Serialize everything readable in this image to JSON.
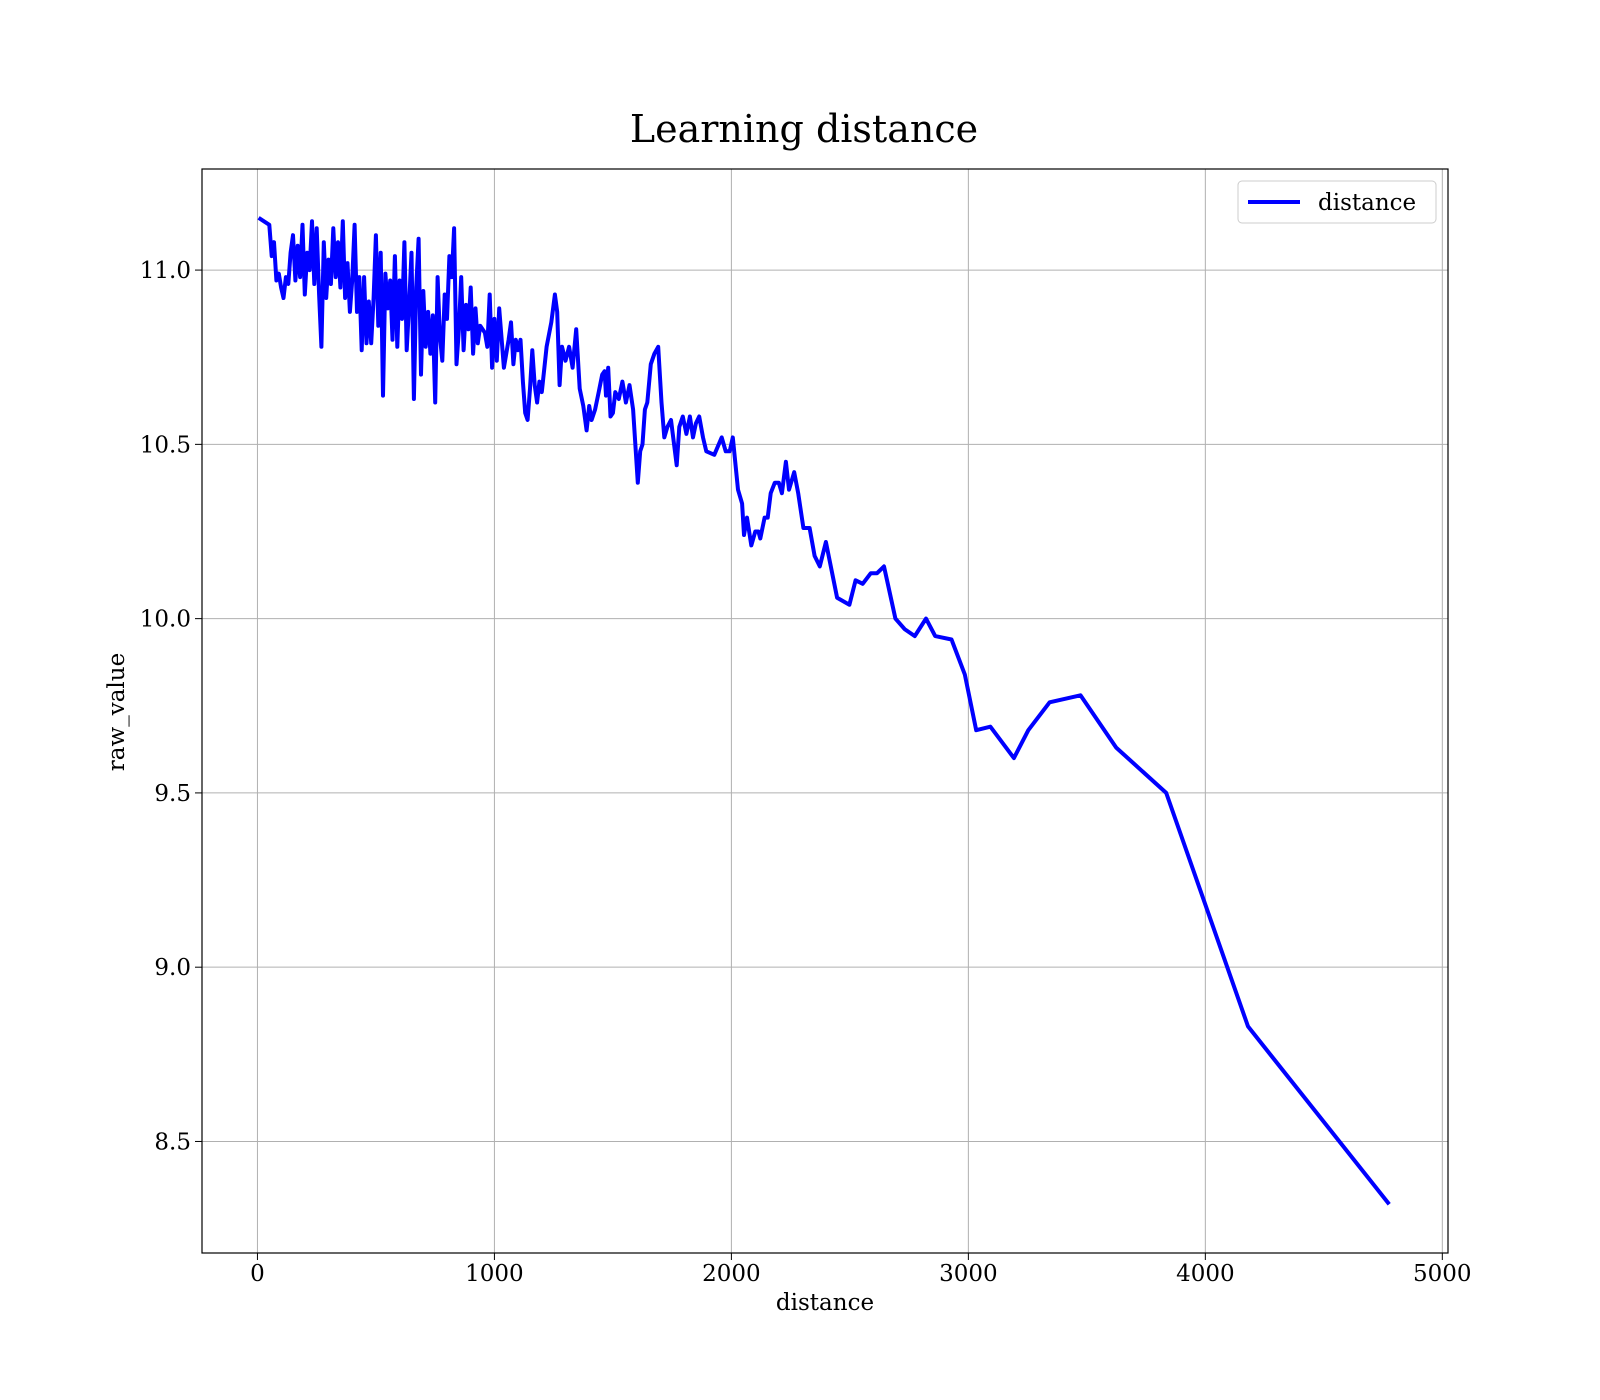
{
  "chart_data": {
    "type": "line",
    "title": "Learning distance",
    "x_label": "distance",
    "y_label": "raw_value",
    "x": [
      5,
      50,
      60,
      70,
      80,
      90,
      100,
      110,
      120,
      130,
      140,
      150,
      160,
      170,
      180,
      190,
      200,
      210,
      220,
      230,
      240,
      250,
      260,
      270,
      280,
      290,
      300,
      310,
      320,
      330,
      340,
      350,
      360,
      370,
      380,
      390,
      400,
      410,
      420,
      430,
      440,
      450,
      460,
      470,
      480,
      490,
      500,
      510,
      520,
      530,
      540,
      550,
      560,
      570,
      580,
      590,
      600,
      610,
      620,
      630,
      640,
      650,
      660,
      670,
      680,
      690,
      700,
      710,
      720,
      730,
      740,
      750,
      760,
      770,
      780,
      790,
      800,
      810,
      820,
      830,
      840,
      850,
      860,
      870,
      880,
      890,
      900,
      910,
      920,
      930,
      940,
      960,
      970,
      980,
      990,
      1000,
      1010,
      1020,
      1040,
      1060,
      1070,
      1080,
      1090,
      1100,
      1110,
      1120,
      1130,
      1140,
      1150,
      1160,
      1170,
      1180,
      1190,
      1200,
      1220,
      1240,
      1255,
      1265,
      1275,
      1285,
      1300,
      1315,
      1330,
      1345,
      1360,
      1375,
      1389,
      1400,
      1410,
      1425,
      1440,
      1455,
      1465,
      1471,
      1480,
      1490,
      1500,
      1510,
      1525,
      1540,
      1555,
      1570,
      1585,
      1605,
      1615,
      1625,
      1635,
      1645,
      1660,
      1675,
      1691,
      1705,
      1717,
      1730,
      1745,
      1769,
      1780,
      1795,
      1810,
      1825,
      1838,
      1850,
      1864,
      1880,
      1894,
      1928,
      1959,
      1976,
      1993,
      2006,
      2028,
      2045,
      2053,
      2066,
      2084,
      2101,
      2114,
      2122,
      2140,
      2153,
      2166,
      2183,
      2200,
      2213,
      2230,
      2243,
      2265,
      2282,
      2304,
      2330,
      2351,
      2373,
      2399,
      2446,
      2498,
      2524,
      2554,
      2588,
      2614,
      2644,
      2692,
      2731,
      2774,
      2821,
      2860,
      2929,
      2985,
      3033,
      3093,
      3192,
      3253,
      3343,
      3473,
      3624,
      3835,
      4180,
      4776
    ],
    "series": [
      {
        "name": "distance",
        "color": "#0000ff",
        "values": [
          11.15,
          11.13,
          11.04,
          11.08,
          10.97,
          10.99,
          10.95,
          10.92,
          10.98,
          10.96,
          11.05,
          11.1,
          10.97,
          11.07,
          10.98,
          11.13,
          10.93,
          11.05,
          11.0,
          11.14,
          10.96,
          11.12,
          10.93,
          10.78,
          11.08,
          10.92,
          11.03,
          10.96,
          11.12,
          10.98,
          11.08,
          10.95,
          11.14,
          10.92,
          11.02,
          10.88,
          10.97,
          11.13,
          10.88,
          10.98,
          10.77,
          10.98,
          10.79,
          10.91,
          10.79,
          10.92,
          11.1,
          10.84,
          11.05,
          10.64,
          10.99,
          10.89,
          10.97,
          10.8,
          11.04,
          10.78,
          10.97,
          10.86,
          11.08,
          10.77,
          10.9,
          11.05,
          10.63,
          10.95,
          11.09,
          10.7,
          10.94,
          10.78,
          10.88,
          10.76,
          10.87,
          10.62,
          10.98,
          10.81,
          10.74,
          10.93,
          10.86,
          11.04,
          10.98,
          11.12,
          10.73,
          10.83,
          10.98,
          10.77,
          10.9,
          10.83,
          10.95,
          10.76,
          10.89,
          10.79,
          10.84,
          10.82,
          10.78,
          10.93,
          10.72,
          10.86,
          10.74,
          10.89,
          10.72,
          10.8,
          10.85,
          10.73,
          10.8,
          10.77,
          10.8,
          10.68,
          10.59,
          10.57,
          10.66,
          10.77,
          10.67,
          10.62,
          10.68,
          10.65,
          10.78,
          10.85,
          10.93,
          10.88,
          10.67,
          10.78,
          10.74,
          10.78,
          10.72,
          10.83,
          10.66,
          10.61,
          10.54,
          10.61,
          10.57,
          10.6,
          10.65,
          10.7,
          10.71,
          10.64,
          10.72,
          10.58,
          10.59,
          10.65,
          10.63,
          10.68,
          10.62,
          10.67,
          10.6,
          10.39,
          10.48,
          10.5,
          10.6,
          10.62,
          10.73,
          10.76,
          10.78,
          10.62,
          10.52,
          10.55,
          10.57,
          10.44,
          10.55,
          10.58,
          10.53,
          10.58,
          10.52,
          10.56,
          10.58,
          10.52,
          10.48,
          10.47,
          10.52,
          10.48,
          10.48,
          10.52,
          10.37,
          10.33,
          10.24,
          10.29,
          10.21,
          10.25,
          10.25,
          10.23,
          10.29,
          10.29,
          10.36,
          10.39,
          10.39,
          10.36,
          10.45,
          10.37,
          10.42,
          10.36,
          10.26,
          10.26,
          10.18,
          10.15,
          10.22,
          10.06,
          10.04,
          10.11,
          10.1,
          10.13,
          10.13,
          10.15,
          10.0,
          9.97,
          9.95,
          10.0,
          9.95,
          9.94,
          9.84,
          9.68,
          9.69,
          9.6,
          9.68,
          9.76,
          9.78,
          9.63,
          9.5,
          8.83,
          8.32
        ]
      }
    ],
    "xlim": [
      -234,
      5024
    ],
    "ylim": [
      8.18,
      11.29
    ],
    "xticks": [
      0,
      1000,
      2000,
      3000,
      4000,
      5000
    ],
    "yticks": [
      {
        "value": 8.5,
        "label": "8.5"
      },
      {
        "value": 9,
        "label": "9.0"
      },
      9.5,
      {
        "value": 10,
        "label": "10.0"
      },
      10.5,
      {
        "value": 11,
        "label": "11.0"
      }
    ],
    "grid": true,
    "legend": "upper right"
  }
}
